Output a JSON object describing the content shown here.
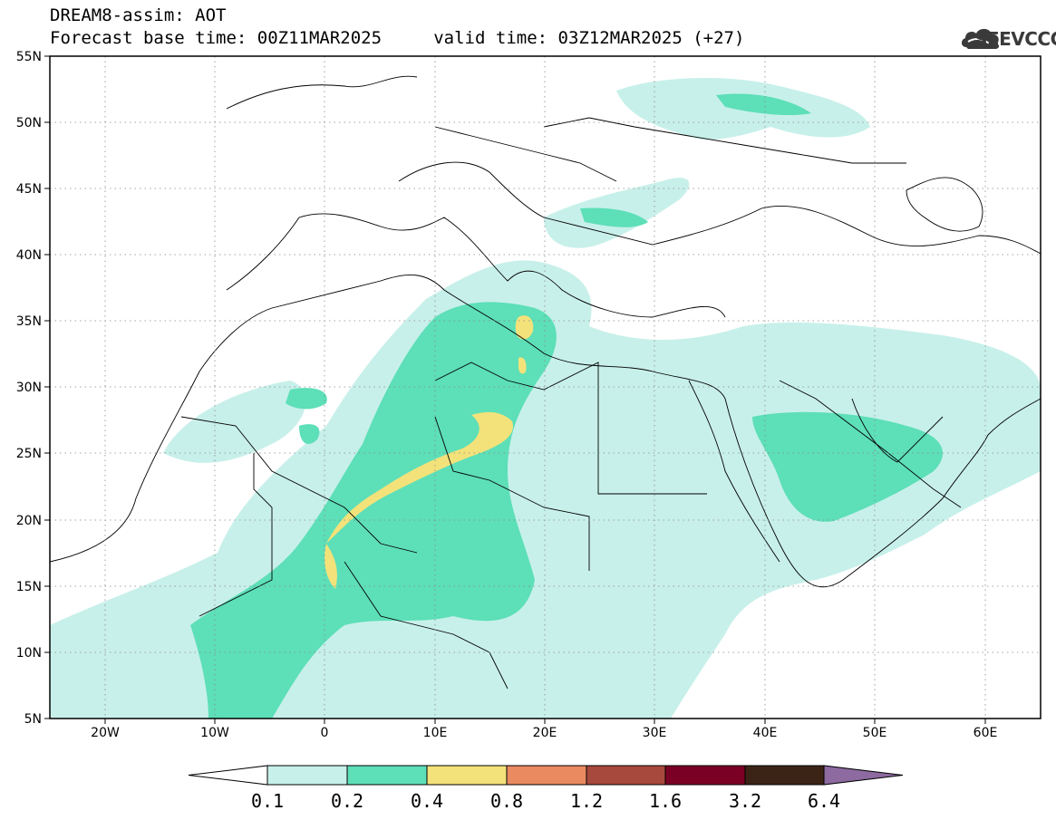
{
  "header": {
    "title_line1": "DREAM8-assim: AOT",
    "title_line2": "Forecast base time: 00Z11MAR2025     valid time: 03Z12MAR2025 (+27)",
    "logo_text": "SEEVCCC"
  },
  "map": {
    "lat_labels": [
      "55N",
      "50N",
      "45N",
      "40N",
      "35N",
      "30N",
      "25N",
      "20N",
      "15N",
      "10N",
      "5N"
    ],
    "lon_labels": [
      "20W",
      "10W",
      "0",
      "10E",
      "20E",
      "30E",
      "40E",
      "50E",
      "60E"
    ],
    "colors": {
      "0.1-0.2": "#c8f0ea",
      "0.2-0.4": "#5ddfb8",
      "0.4-0.8": "#f3e27a",
      "0.8-1.2": "#e98a60",
      "1.2-1.6": "#a8493d",
      "1.6-3.2": "#7b0025",
      "3.2-6.4": "#3b2416",
      "over-6.4": "#8d6aa0"
    }
  },
  "colorbar": {
    "labels": [
      "0.1",
      "0.2",
      "0.4",
      "0.8",
      "1.2",
      "1.6",
      "3.2",
      "6.4"
    ],
    "colors": [
      "#c8f0ea",
      "#5ddfb8",
      "#f3e27a",
      "#e98a60",
      "#a8493d",
      "#7b0025",
      "#3b2416"
    ],
    "under_color": "#ffffff",
    "over_color": "#8d6aa0"
  }
}
